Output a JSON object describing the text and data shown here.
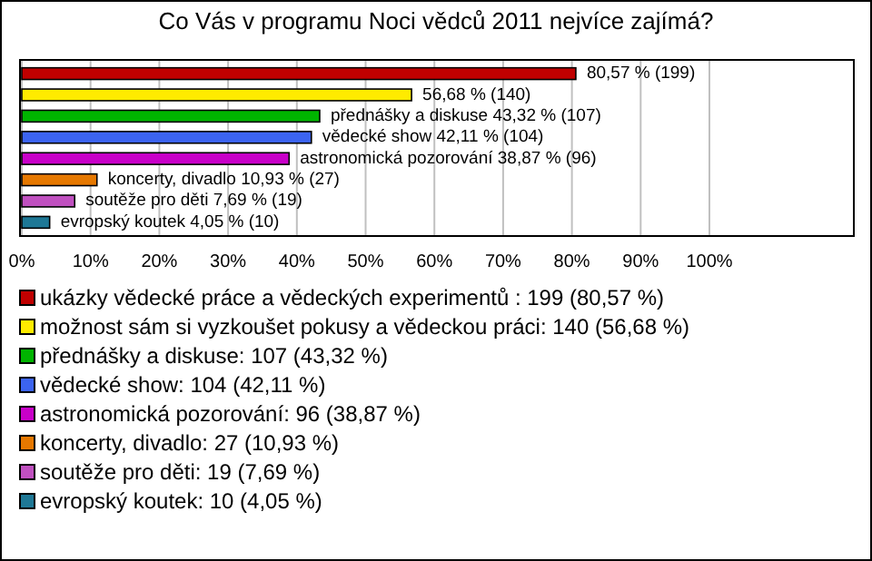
{
  "chart_data": {
    "type": "bar",
    "orientation": "horizontal",
    "title": "Co Vás v programu Noci vědců 2011 nejvíce zajímá?",
    "categories": [
      null,
      null,
      null,
      null,
      null,
      null,
      null,
      null
    ],
    "series": [
      {
        "name": "ukázky vědecké práce a vědeckých experimentů : 199 (80,57 %)",
        "color": "#c00000",
        "values": [
          80.57,
          null,
          null,
          null,
          null,
          null,
          null,
          null
        ],
        "value_labels": [
          "80,57 % (199)",
          null,
          null,
          null,
          null,
          null,
          null,
          null
        ]
      },
      {
        "name": "možnost sám si vyzkoušet pokusy a vědeckou práci: 140 (56,68 %)",
        "color": "#ffeb00",
        "values": [
          null,
          56.68,
          null,
          null,
          null,
          null,
          null,
          null
        ],
        "value_labels": [
          null,
          "56,68 % (140)",
          null,
          null,
          null,
          null,
          null,
          null
        ]
      },
      {
        "name": "přednášky a diskuse: 107 (43,32 %)",
        "color": "#00b400",
        "values": [
          null,
          null,
          43.32,
          null,
          null,
          null,
          null,
          null
        ],
        "value_labels": [
          null,
          null,
          "přednášky a diskuse 43,32 % (107)",
          null,
          null,
          null,
          null,
          null
        ]
      },
      {
        "name": "vědecké show: 104 (42,11 %)",
        "color": "#3c64f0",
        "values": [
          null,
          null,
          null,
          42.11,
          null,
          null,
          null,
          null
        ],
        "value_labels": [
          null,
          null,
          null,
          "vědecké show 42,11 % (104)",
          null,
          null,
          null,
          null
        ]
      },
      {
        "name": "astronomická pozorování: 96 (38,87 %)",
        "color": "#c800c8",
        "values": [
          null,
          null,
          null,
          null,
          38.87,
          null,
          null,
          null
        ],
        "value_labels": [
          null,
          null,
          null,
          null,
          "astronomická pozorování 38,87 % (96)",
          null,
          null,
          null
        ]
      },
      {
        "name": "koncerty, divadlo: 27 (10,93 %)",
        "color": "#e67800",
        "values": [
          null,
          null,
          null,
          null,
          null,
          10.93,
          null,
          null
        ],
        "value_labels": [
          null,
          null,
          null,
          null,
          null,
          "koncerty, divadlo 10,93 % (27)",
          null,
          null
        ]
      },
      {
        "name": "soutěže pro děti: 19 (7,69 %)",
        "color": "#c050c0",
        "values": [
          null,
          null,
          null,
          null,
          null,
          null,
          7.69,
          null
        ],
        "value_labels": [
          null,
          null,
          null,
          null,
          null,
          null,
          "soutěže pro děti 7,69 % (19)",
          null
        ]
      },
      {
        "name": "evropský koutek: 10 (4,05 %)",
        "color": "#1e7896",
        "values": [
          null,
          null,
          null,
          null,
          null,
          null,
          null,
          4.05
        ],
        "value_labels": [
          null,
          null,
          null,
          null,
          null,
          null,
          null,
          "evropský koutek 4,05 % (10)"
        ]
      }
    ],
    "xlim": [
      0,
      121
    ],
    "xticks": [
      {
        "value": 0,
        "label": "0%"
      },
      {
        "value": 10,
        "label": "10%"
      },
      {
        "value": 20,
        "label": "20%"
      },
      {
        "value": 30,
        "label": "30%"
      },
      {
        "value": 40,
        "label": "40%"
      },
      {
        "value": 50,
        "label": "50%"
      },
      {
        "value": 60,
        "label": "60%"
      },
      {
        "value": 70,
        "label": "70%"
      },
      {
        "value": 80,
        "label": "80%"
      },
      {
        "value": 90,
        "label": "90%"
      },
      {
        "value": 100,
        "label": "100%"
      }
    ],
    "grid": "x",
    "legend": "bottom"
  }
}
